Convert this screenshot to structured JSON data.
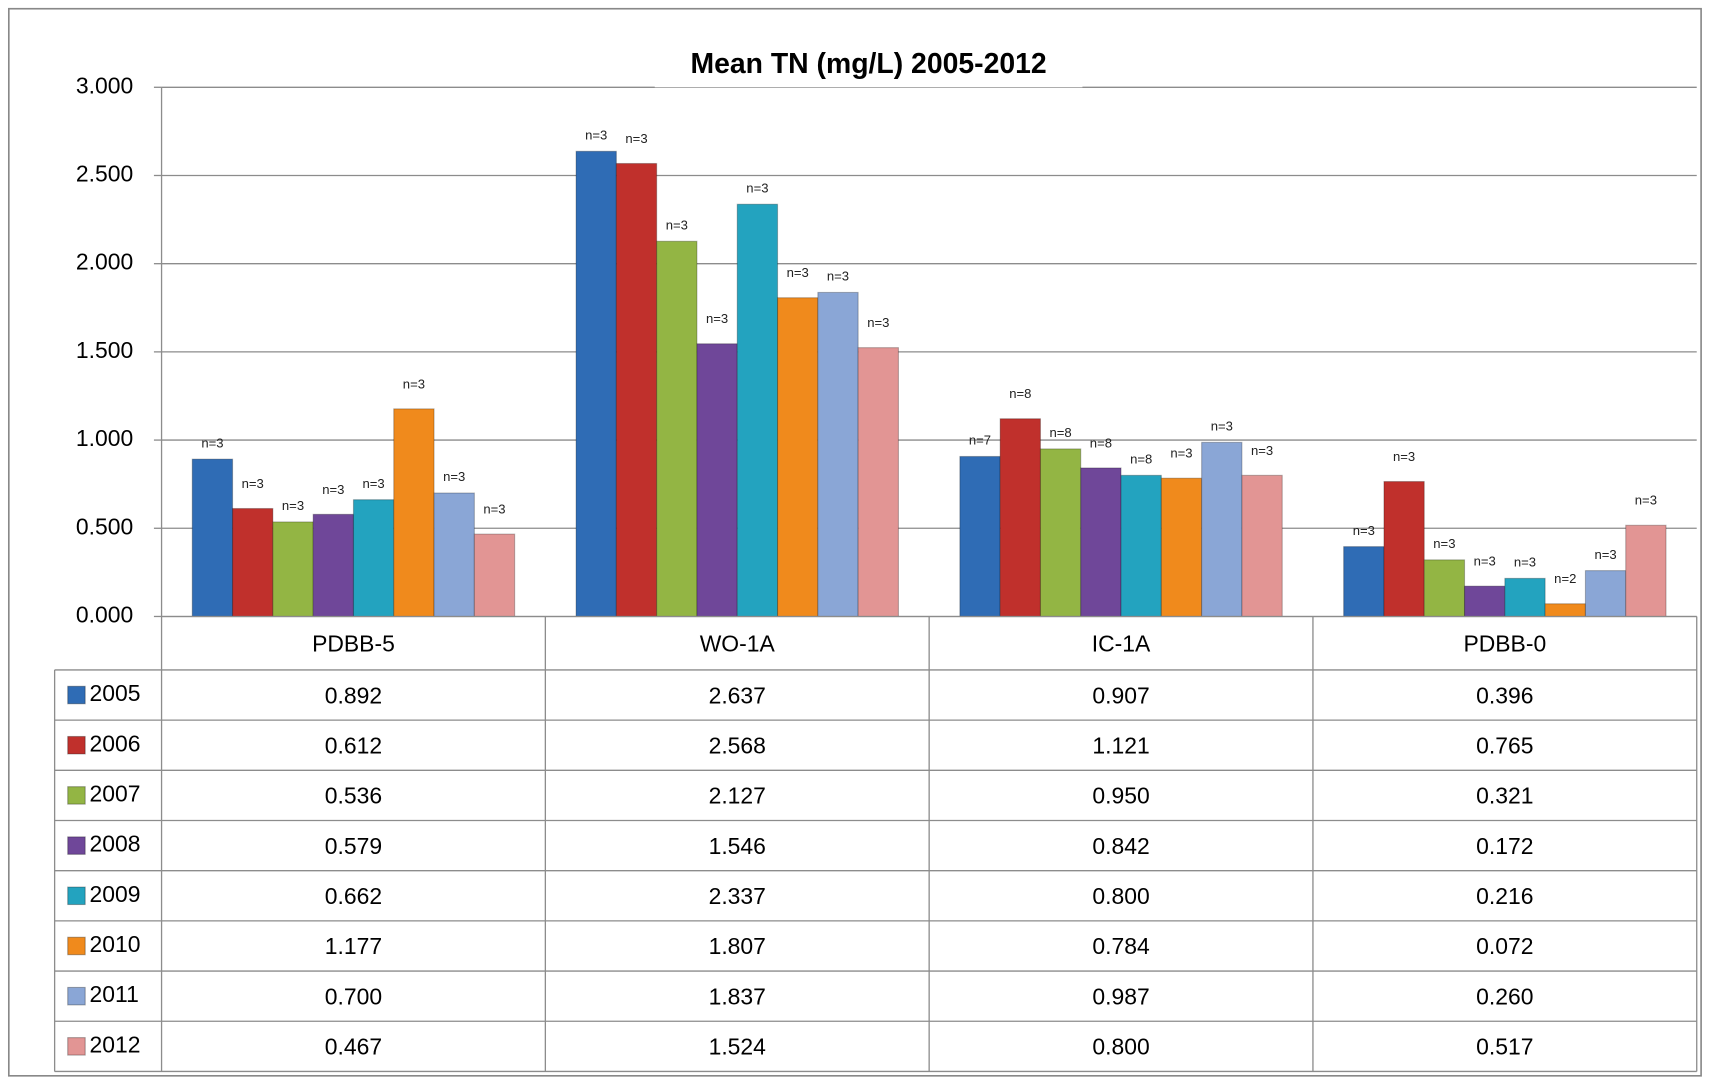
{
  "chart_data": {
    "type": "bar",
    "title": "Mean TN (mg/L) 2005-2012",
    "categories": [
      "PDBB-5",
      "WO-1A",
      "IC-1A",
      "PDBB-0"
    ],
    "ylim": [
      0,
      3
    ],
    "yticks": [
      {
        "value": 0,
        "label": "0.000"
      },
      {
        "value": 0.5,
        "label": "0.500"
      },
      {
        "value": 1,
        "label": "1.000"
      },
      {
        "value": 1.5,
        "label": "1.500"
      },
      {
        "value": 2,
        "label": "2.000"
      },
      {
        "value": 2.5,
        "label": "2.500"
      },
      {
        "value": 3,
        "label": "3.000"
      }
    ],
    "grid": true,
    "series": [
      {
        "name": "2005",
        "color": "#2f6cb5",
        "values": [
          0.892,
          2.637,
          0.907,
          0.396
        ],
        "value_labels": [
          "0.892",
          "2.637",
          "0.907",
          "0.396"
        ],
        "n_labels": [
          "n=3",
          "n=3",
          "n=7",
          "n=3"
        ]
      },
      {
        "name": "2006",
        "color": "#c0302c",
        "values": [
          0.612,
          2.568,
          1.121,
          0.765
        ],
        "value_labels": [
          "0.612",
          "2.568",
          "1.121",
          "0.765"
        ],
        "n_labels": [
          "n=3",
          "n=3",
          "n=8",
          "n=3"
        ]
      },
      {
        "name": "2007",
        "color": "#93b544",
        "values": [
          0.536,
          2.127,
          0.95,
          0.321
        ],
        "value_labels": [
          "0.536",
          "2.127",
          "0.950",
          "0.321"
        ],
        "n_labels": [
          "n=3",
          "n=3",
          "n=8",
          "n=3"
        ]
      },
      {
        "name": "2008",
        "color": "#6f4799",
        "values": [
          0.579,
          1.546,
          0.842,
          0.172
        ],
        "value_labels": [
          "0.579",
          "1.546",
          "0.842",
          "0.172"
        ],
        "n_labels": [
          "n=3",
          "n=3",
          "n=8",
          "n=3"
        ]
      },
      {
        "name": "2009",
        "color": "#23a3bf",
        "values": [
          0.662,
          2.337,
          0.8,
          0.216
        ],
        "value_labels": [
          "0.662",
          "2.337",
          "0.800",
          "0.216"
        ],
        "n_labels": [
          "n=3",
          "n=3",
          "n=8",
          "n=3"
        ]
      },
      {
        "name": "2010",
        "color": "#f08a1c",
        "values": [
          1.177,
          1.807,
          0.784,
          0.072
        ],
        "value_labels": [
          "1.177",
          "1.807",
          "0.784",
          "0.072"
        ],
        "n_labels": [
          "n=3",
          "n=3",
          "n=3",
          "n=2"
        ]
      },
      {
        "name": "2011",
        "color": "#8aa6d6",
        "values": [
          0.7,
          1.837,
          0.987,
          0.26
        ],
        "value_labels": [
          "0.700",
          "1.837",
          "0.987",
          "0.260"
        ],
        "n_labels": [
          "n=3",
          "n=3",
          "n=3",
          "n=3"
        ]
      },
      {
        "name": "2012",
        "color": "#e29594",
        "values": [
          0.467,
          1.524,
          0.8,
          0.517
        ],
        "value_labels": [
          "0.467",
          "1.524",
          "0.800",
          "0.517"
        ],
        "n_labels": [
          "n=3",
          "n=3",
          "n=3",
          "n=3"
        ]
      }
    ]
  }
}
